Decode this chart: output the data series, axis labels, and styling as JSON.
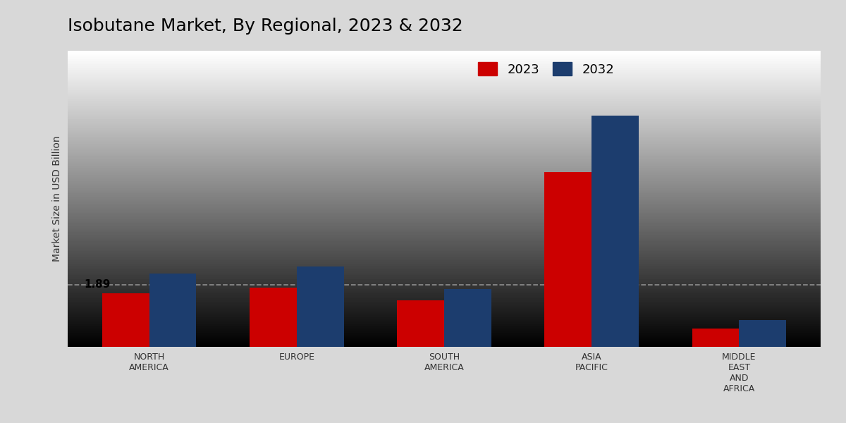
{
  "title": "Isobutane Market, By Regional, 2023 & 2032",
  "ylabel": "Market Size in USD Billion",
  "categories": [
    "NORTH\nAMERICA",
    "EUROPE",
    "SOUTH\nAMERICA",
    "ASIA\nPACIFIC",
    "MIDDLE\nEAST\nAND\nAFRICA"
  ],
  "values_2023": [
    1.89,
    2.1,
    1.65,
    6.2,
    0.65
  ],
  "values_2032": [
    2.6,
    2.85,
    2.05,
    8.2,
    0.95
  ],
  "color_2023": "#cc0000",
  "color_2032": "#1c3d6e",
  "annotation_text": "1.89",
  "background_color_top": "#d8d8d8",
  "background_color_bottom": "#c8c8c8",
  "dashed_line_y": 2.2,
  "bar_width": 0.32,
  "ylim": [
    0,
    10.5
  ],
  "legend_labels": [
    "2023",
    "2032"
  ],
  "title_fontsize": 18,
  "label_fontsize": 10,
  "tick_fontsize": 9,
  "red_bottom_color": "#cc0000"
}
